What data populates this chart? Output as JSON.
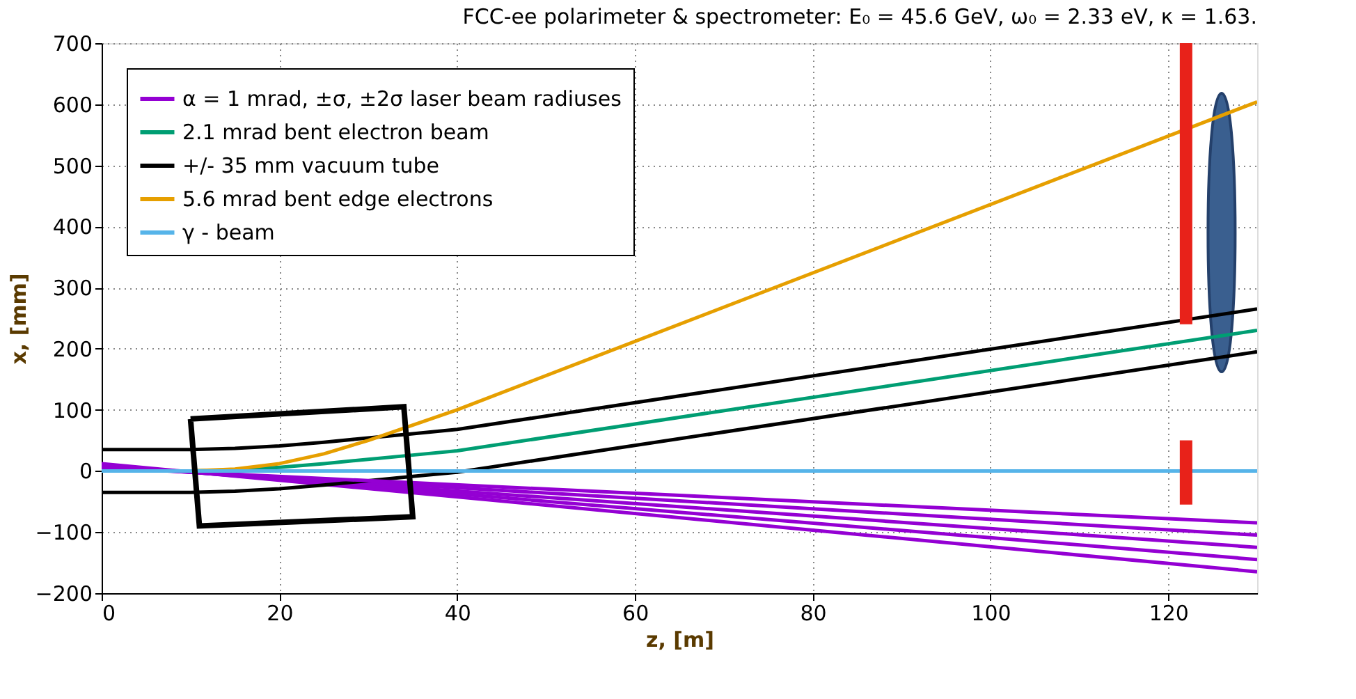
{
  "chart_data": {
    "type": "line",
    "title": "FCC-ee polarimeter & spectrometer: E₀ = 45.6 GeV, ω₀ = 2.33 eV, κ = 1.63.",
    "xlabel": "z, [m]",
    "ylabel": "x, [mm]",
    "xlim": [
      0,
      130
    ],
    "xticks": [
      0,
      20,
      40,
      60,
      80,
      100,
      120
    ],
    "ylim": [
      -200,
      700
    ],
    "yticks": [
      -200,
      -100,
      0,
      100,
      200,
      300,
      400,
      500,
      600,
      700
    ],
    "grid": true,
    "legend": "top left",
    "marker": "none",
    "line_style": "solid",
    "series": [
      {
        "name": "α = 1 mrad, ±σ, ±2σ laser beam radiuses",
        "color": "#9400d3",
        "x": [
          0,
          130
        ],
        "values": [
          5,
          -85
        ]
      },
      {
        "color": "#9400d3",
        "x": [
          0,
          130
        ],
        "values": [
          7,
          -105
        ]
      },
      {
        "color": "#9400d3",
        "x": [
          0,
          130
        ],
        "values": [
          8,
          -125
        ]
      },
      {
        "color": "#9400d3",
        "x": [
          0,
          130
        ],
        "values": [
          10,
          -145
        ]
      },
      {
        "color": "#9400d3",
        "x": [
          0,
          130
        ],
        "values": [
          12,
          -165
        ]
      },
      {
        "name": "2.1 mrad bent electron beam",
        "color": "#009e73",
        "x": [
          0,
          10,
          15,
          20,
          25,
          30,
          35,
          40,
          130
        ],
        "values": [
          0,
          0,
          2,
          6,
          12,
          19,
          26,
          33,
          230
        ]
      },
      {
        "name": "+/- 35 mm vacuum tube",
        "color": "#000000",
        "x": [
          0,
          10,
          15,
          20,
          25,
          30,
          35,
          40,
          130
        ],
        "values": [
          35,
          35,
          37,
          41,
          47,
          54,
          61,
          68,
          265
        ]
      },
      {
        "color": "#000000",
        "x": [
          0,
          10,
          15,
          20,
          25,
          30,
          35,
          40,
          130
        ],
        "values": [
          -35,
          -35,
          -33,
          -29,
          -23,
          -16,
          -9,
          -2,
          195
        ]
      },
      {
        "name": "5.6 mrad bent edge electrons",
        "color": "#e69f00",
        "x": [
          0,
          10,
          15,
          20,
          25,
          30,
          35,
          40,
          130
        ],
        "values": [
          0,
          0,
          3,
          12,
          28,
          50,
          75,
          100,
          604
        ]
      },
      {
        "name": "γ - beam",
        "color": "#56b4e9",
        "x": [
          0,
          130
        ],
        "values": [
          0,
          0
        ]
      }
    ]
  }
}
